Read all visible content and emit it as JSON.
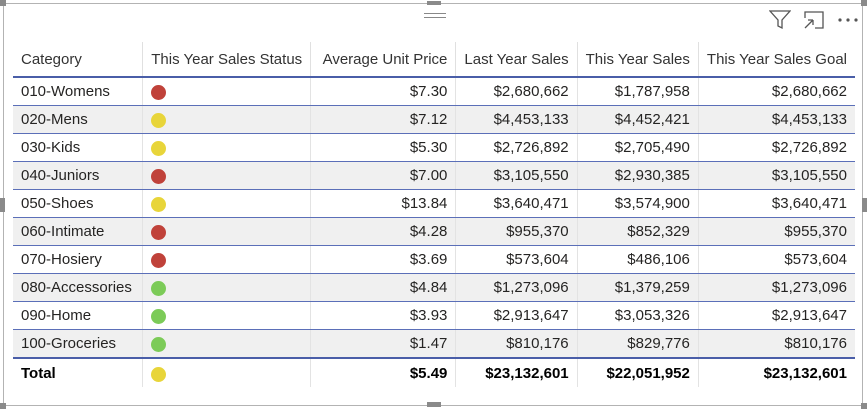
{
  "colors": {
    "red": "#c0423a",
    "yellow": "#e8d53a",
    "green": "#7ccb58",
    "rule": "#4a5ea8"
  },
  "toolbar": {
    "icons": [
      "filter-icon",
      "focus-mode-icon",
      "more-options-icon"
    ]
  },
  "table": {
    "headers": [
      "Category",
      "This Year Sales Status",
      "Average Unit Price",
      "Last Year Sales",
      "This Year Sales",
      "This Year Sales Goal"
    ],
    "rows": [
      {
        "category": "010-Womens",
        "status": "red",
        "avg_price": "$7.30",
        "ly_sales": "$2,680,662",
        "ty_sales": "$1,787,958",
        "ty_goal": "$2,680,662"
      },
      {
        "category": "020-Mens",
        "status": "yellow",
        "avg_price": "$7.12",
        "ly_sales": "$4,453,133",
        "ty_sales": "$4,452,421",
        "ty_goal": "$4,453,133"
      },
      {
        "category": "030-Kids",
        "status": "yellow",
        "avg_price": "$5.30",
        "ly_sales": "$2,726,892",
        "ty_sales": "$2,705,490",
        "ty_goal": "$2,726,892"
      },
      {
        "category": "040-Juniors",
        "status": "red",
        "avg_price": "$7.00",
        "ly_sales": "$3,105,550",
        "ty_sales": "$2,930,385",
        "ty_goal": "$3,105,550"
      },
      {
        "category": "050-Shoes",
        "status": "yellow",
        "avg_price": "$13.84",
        "ly_sales": "$3,640,471",
        "ty_sales": "$3,574,900",
        "ty_goal": "$3,640,471"
      },
      {
        "category": "060-Intimate",
        "status": "red",
        "avg_price": "$4.28",
        "ly_sales": "$955,370",
        "ty_sales": "$852,329",
        "ty_goal": "$955,370"
      },
      {
        "category": "070-Hosiery",
        "status": "red",
        "avg_price": "$3.69",
        "ly_sales": "$573,604",
        "ty_sales": "$486,106",
        "ty_goal": "$573,604"
      },
      {
        "category": "080-Accessories",
        "status": "green",
        "avg_price": "$4.84",
        "ly_sales": "$1,273,096",
        "ty_sales": "$1,379,259",
        "ty_goal": "$1,273,096"
      },
      {
        "category": "090-Home",
        "status": "green",
        "avg_price": "$3.93",
        "ly_sales": "$2,913,647",
        "ty_sales": "$3,053,326",
        "ty_goal": "$2,913,647"
      },
      {
        "category": "100-Groceries",
        "status": "green",
        "avg_price": "$1.47",
        "ly_sales": "$810,176",
        "ty_sales": "$829,776",
        "ty_goal": "$810,176"
      }
    ],
    "total": {
      "category": "Total",
      "status": "yellow",
      "avg_price": "$5.49",
      "ly_sales": "$23,132,601",
      "ty_sales": "$22,051,952",
      "ty_goal": "$23,132,601"
    }
  }
}
